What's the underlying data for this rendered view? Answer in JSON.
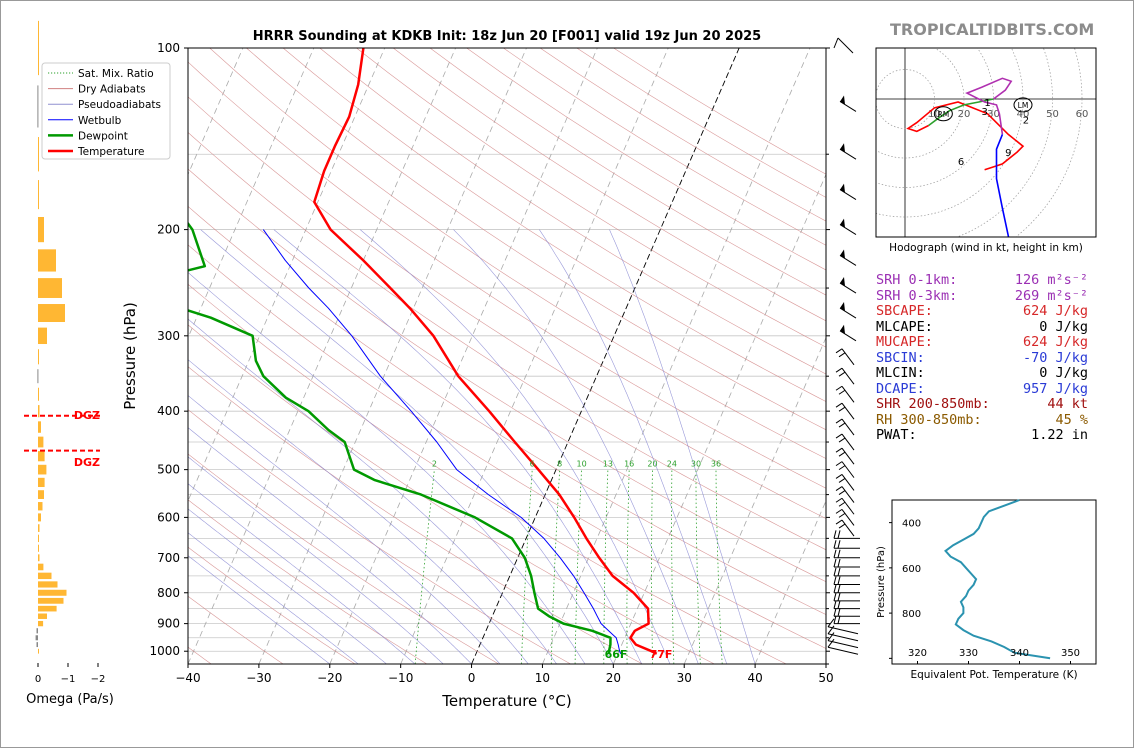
{
  "title": "HRRR Sounding at KDKB Init: 18z Jun 20 [F001] valid 19z Jun 20 2025",
  "brand": "TROPICALTIDBITS.COM",
  "skewt": {
    "xlabel": "Temperature (°C)",
    "ylabel": "Pressure (hPa)",
    "x_ticks": [
      -40,
      -30,
      -20,
      -10,
      0,
      10,
      20,
      30,
      40,
      50
    ],
    "y_ticks": [
      100,
      200,
      300,
      400,
      500,
      600,
      700,
      800,
      900,
      1000
    ],
    "mixing_ratio_labels": [
      "2",
      "6",
      "8",
      "10",
      "13",
      "16",
      "20",
      "24",
      "30",
      "36"
    ],
    "surface_dewpoint_label": "66F",
    "surface_temperature_label": "77F"
  },
  "legend": [
    {
      "label": "Sat. Mix. Ratio",
      "color": "#2ca02c",
      "style": "dotted"
    },
    {
      "label": "Dry Adiabats",
      "color": "#d08080",
      "style": "solid"
    },
    {
      "label": "Pseudoadiabats",
      "color": "#9090d0",
      "style": "solid"
    },
    {
      "label": "Wetbulb",
      "color": "#0000ff",
      "style": "solid"
    },
    {
      "label": "Dewpoint",
      "color": "#009900",
      "style": "solid"
    },
    {
      "label": "Temperature",
      "color": "#ff0000",
      "style": "solid"
    }
  ],
  "omega": {
    "xlabel": "Omega (Pa/s)",
    "x_ticks": [
      "0",
      "−1",
      "−2"
    ],
    "dgz_label": "DGZ"
  },
  "hodograph": {
    "caption": "Hodograph (wind in kt, height in km)",
    "ring_labels": [
      "10",
      "20",
      "30",
      "40",
      "50",
      "60"
    ],
    "height_labels": [
      "1",
      "2",
      "3",
      "6",
      "9"
    ],
    "rm_label": "RM",
    "lm_label": "LM"
  },
  "params": [
    {
      "label": "SRH 0-1km:",
      "value": "126",
      "unit": "m²s⁻²",
      "color": "#9b30b4"
    },
    {
      "label": "SRH 0-3km:",
      "value": "269",
      "unit": "m²s⁻²",
      "color": "#9b30b4"
    },
    {
      "label": "SBCAPE:",
      "value": "624 J/kg",
      "color": "#d62728"
    },
    {
      "label": "MLCAPE:",
      "value": "0 J/kg",
      "color": "#000000"
    },
    {
      "label": "MUCAPE:",
      "value": "624 J/kg",
      "color": "#d62728"
    },
    {
      "label": "SBCIN:",
      "value": "-70 J/kg",
      "color": "#2a3bd6"
    },
    {
      "label": "MLCIN:",
      "value": "0 J/kg",
      "color": "#000000"
    },
    {
      "label": "DCAPE:",
      "value": "957 J/kg",
      "color": "#2a3bd6"
    },
    {
      "label": "SHR 200-850mb:",
      "value": "44 kt",
      "color": "#a01010"
    },
    {
      "label": "RH 300-850mb:",
      "value": "45 %",
      "color": "#8b5a00"
    },
    {
      "label": "PWAT:",
      "value": "1.22 in",
      "color": "#000000"
    }
  ],
  "theta_e": {
    "xlabel": "Equivalent Pot. Temperature (K)",
    "ylabel": "Pressure (hPa)",
    "x_ticks": [
      "320",
      "330",
      "340",
      "350"
    ],
    "y_ticks": [
      "400",
      "600",
      "800"
    ]
  },
  "chart_data": [
    {
      "type": "line",
      "chart": "skew-t",
      "title": "HRRR Sounding at KDKB Init: 18z Jun 20 [F001] valid 19z Jun 20 2025",
      "xlabel": "Temperature (°C)",
      "ylabel": "Pressure (hPa)",
      "xlim": [
        -40,
        50
      ],
      "ylim": [
        1050,
        100
      ],
      "y_scale": "log",
      "skew": true,
      "series": [
        {
          "name": "Temperature",
          "color": "#ff0000",
          "points": [
            [
              1010,
              25.5
            ],
            [
              1000,
              24.6
            ],
            [
              975,
              22.0
            ],
            [
              950,
              20.8
            ],
            [
              925,
              21.0
            ],
            [
              900,
              22.5
            ],
            [
              875,
              22.0
            ],
            [
              850,
              21.5
            ],
            [
              800,
              18.5
            ],
            [
              750,
              14.5
            ],
            [
              700,
              11.5
            ],
            [
              650,
              8.5
            ],
            [
              600,
              5.5
            ],
            [
              550,
              2.0
            ],
            [
              500,
              -2.5
            ],
            [
              450,
              -7.5
            ],
            [
              400,
              -13.0
            ],
            [
              350,
              -19.5
            ],
            [
              300,
              -25.5
            ],
            [
              270,
              -30.5
            ],
            [
              250,
              -34.5
            ],
            [
              225,
              -40.0
            ],
            [
              200,
              -46.5
            ],
            [
              180,
              -50.5
            ],
            [
              160,
              -51.0
            ],
            [
              145,
              -51.0
            ],
            [
              130,
              -50.8
            ],
            [
              115,
              -51.5
            ],
            [
              100,
              -53.0
            ]
          ]
        },
        {
          "name": "Dewpoint",
          "color": "#009900",
          "points": [
            [
              1010,
              18.8
            ],
            [
              1000,
              18.6
            ],
            [
              975,
              18.4
            ],
            [
              950,
              18.0
            ],
            [
              925,
              15.0
            ],
            [
              900,
              10.5
            ],
            [
              875,
              8.0
            ],
            [
              850,
              6.0
            ],
            [
              800,
              4.5
            ],
            [
              750,
              3.0
            ],
            [
              700,
              1.0
            ],
            [
              650,
              -2.0
            ],
            [
              600,
              -8.5
            ],
            [
              550,
              -17.5
            ],
            [
              520,
              -25.0
            ],
            [
              500,
              -28.5
            ],
            [
              450,
              -31.5
            ],
            [
              430,
              -34.5
            ],
            [
              400,
              -38.5
            ],
            [
              380,
              -42.5
            ],
            [
              350,
              -47.0
            ],
            [
              330,
              -49.0
            ],
            [
              300,
              -51.0
            ],
            [
              280,
              -58.0
            ],
            [
              250,
              -73.0
            ],
            [
              230,
              -62.0
            ],
            [
              200,
              -66.0
            ],
            [
              170,
              -73.0
            ],
            [
              150,
              -77.0
            ],
            [
              130,
              -81.0
            ],
            [
              115,
              -85.0
            ],
            [
              100,
              -86.0
            ]
          ]
        },
        {
          "name": "Wetbulb",
          "color": "#0000ff",
          "points": [
            [
              1010,
              20.4
            ],
            [
              1000,
              20.1
            ],
            [
              975,
              19.5
            ],
            [
              950,
              18.8
            ],
            [
              925,
              17.3
            ],
            [
              900,
              15.8
            ],
            [
              875,
              14.8
            ],
            [
              850,
              13.8
            ],
            [
              800,
              11.5
            ],
            [
              750,
              9.0
            ],
            [
              700,
              6.0
            ],
            [
              650,
              2.5
            ],
            [
              600,
              -2.0
            ],
            [
              550,
              -8.0
            ],
            [
              500,
              -14.0
            ],
            [
              450,
              -18.5
            ],
            [
              400,
              -24.0
            ],
            [
              350,
              -30.5
            ],
            [
              300,
              -37.0
            ],
            [
              270,
              -42.0
            ],
            [
              250,
              -46.0
            ],
            [
              225,
              -51.0
            ],
            [
              200,
              -56.0
            ]
          ]
        }
      ]
    },
    {
      "type": "bar",
      "chart": "omega",
      "xlabel": "Omega (Pa/s)",
      "xlim": [
        0.3,
        -2.3
      ],
      "pressure_levels": [
        1000,
        975,
        950,
        925,
        900,
        875,
        850,
        825,
        800,
        775,
        750,
        725,
        700,
        675,
        650,
        625,
        600,
        575,
        550,
        525,
        500,
        475,
        450,
        425,
        400,
        375,
        350,
        325,
        300,
        275,
        250,
        225,
        200,
        175,
        150,
        125,
        100
      ],
      "values": [
        -0.02,
        0.05,
        0.08,
        0.05,
        -0.17,
        -0.3,
        -0.62,
        -0.85,
        -0.95,
        -0.65,
        -0.45,
        -0.18,
        -0.05,
        -0.02,
        -0.01,
        -0.05,
        -0.1,
        -0.15,
        -0.2,
        -0.22,
        -0.28,
        -0.22,
        -0.18,
        -0.1,
        -0.05,
        0.0,
        0.02,
        -0.02,
        -0.3,
        -0.9,
        -0.8,
        -0.6,
        -0.2,
        -0.02,
        0.0,
        0.02,
        -0.02
      ],
      "dgz": [
        465,
        407
      ]
    },
    {
      "type": "line",
      "chart": "hodograph",
      "caption": "Hodograph (wind in kt, height in km)",
      "ring_values": [
        10,
        20,
        30,
        40,
        50,
        60
      ],
      "points_uv": [
        [
          27,
          -24
        ],
        [
          30,
          -23
        ],
        [
          33,
          -22
        ],
        [
          38,
          -18
        ],
        [
          40,
          -16
        ],
        [
          35,
          -12
        ],
        [
          28,
          -5
        ],
        [
          18,
          -1
        ],
        [
          10,
          -3
        ],
        [
          4,
          -8
        ],
        [
          1,
          -10
        ],
        [
          4,
          -11
        ],
        [
          8,
          -9
        ],
        [
          12,
          -6
        ],
        [
          15,
          -4
        ],
        [
          20,
          -2
        ],
        [
          25,
          -1
        ],
        [
          30,
          0
        ],
        [
          34,
          3
        ],
        [
          36,
          6
        ],
        [
          33,
          7
        ],
        [
          26,
          4
        ],
        [
          21,
          2
        ],
        [
          27,
          -1
        ],
        [
          31,
          -2
        ],
        [
          32,
          -5
        ],
        [
          33,
          -12
        ],
        [
          31,
          -17
        ],
        [
          31,
          -27
        ],
        [
          33,
          -37
        ],
        [
          36,
          -51
        ],
        [
          45,
          -59
        ],
        [
          57,
          -62
        ],
        [
          60,
          -65
        ],
        [
          63,
          -71
        ],
        [
          65,
          -74
        ],
        [
          59,
          -80
        ],
        [
          51,
          -82
        ],
        [
          35,
          -86
        ],
        [
          22,
          -87
        ],
        [
          10,
          -90
        ]
      ],
      "height_labels_uv": {
        "1": [
          28,
          -1
        ],
        "2": [
          41,
          -7
        ],
        "3": [
          27,
          -4
        ],
        "6": [
          19,
          -21
        ],
        "9": [
          35,
          -18
        ]
      },
      "storm_motion_uv": {
        "RM": [
          13,
          -5
        ],
        "LM": [
          40,
          -2
        ]
      }
    },
    {
      "type": "line",
      "chart": "theta-e",
      "xlabel": "Equivalent Pot. Temperature (K)",
      "ylabel": "Pressure (hPa)",
      "xlim": [
        315,
        355
      ],
      "ylim": [
        1025,
        300
      ],
      "y": [
        1000,
        975,
        950,
        925,
        900,
        875,
        850,
        825,
        800,
        775,
        750,
        725,
        700,
        675,
        650,
        625,
        600,
        575,
        550,
        525,
        500,
        475,
        450,
        425,
        400,
        375,
        350,
        325,
        300
      ],
      "x": [
        346.0,
        339.0,
        337.0,
        334.5,
        331.0,
        329.0,
        327.5,
        328.0,
        329.0,
        329.0,
        328.5,
        329.5,
        330.0,
        331.0,
        331.5,
        330.5,
        329.5,
        328.5,
        326.5,
        325.5,
        327.0,
        329.0,
        331.0,
        332.0,
        332.5,
        333.0,
        334.0,
        337.0,
        340.0
      ]
    }
  ]
}
